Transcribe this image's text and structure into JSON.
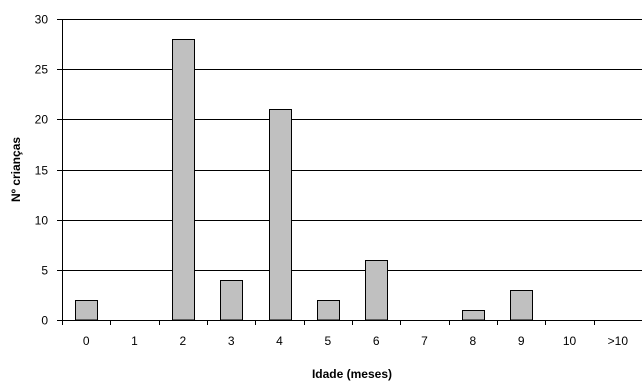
{
  "chart_data": {
    "type": "bar",
    "title": "",
    "xlabel": "Idade (meses)",
    "ylabel": "Nº crianças",
    "categories": [
      "0",
      "1",
      "2",
      "3",
      "4",
      "5",
      "6",
      "7",
      "8",
      "9",
      "10",
      ">10"
    ],
    "values": [
      2,
      0,
      28,
      4,
      21,
      2,
      6,
      0,
      1,
      3,
      0,
      0
    ],
    "ylim": [
      0,
      30
    ],
    "yticks": [
      0,
      5,
      10,
      15,
      20,
      25,
      30
    ],
    "grid": true,
    "legend": "none",
    "colors": {
      "bar_fill": "#c0c0c0",
      "bar_stroke": "#000000",
      "grid": "#000000",
      "axis": "#000000"
    }
  }
}
